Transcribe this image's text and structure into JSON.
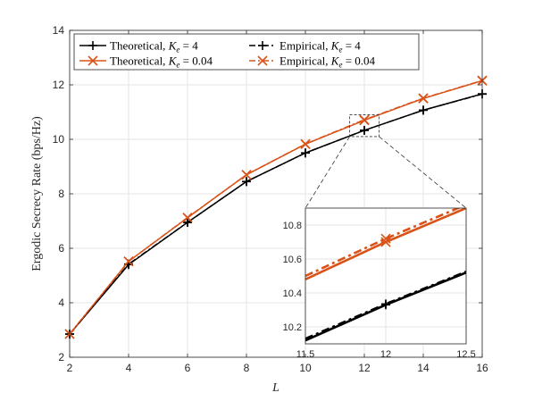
{
  "chart_data": [
    {
      "type": "line",
      "xlabel": "L",
      "ylabel": "Ergodic Secrecy Rate (bps/Hz)",
      "xlim": [
        2,
        16
      ],
      "ylim": [
        2,
        14
      ],
      "xticks": [
        2,
        4,
        6,
        8,
        10,
        12,
        14,
        16
      ],
      "yticks": [
        2,
        4,
        6,
        8,
        10,
        12,
        14
      ],
      "grid": true,
      "legend_position": "top",
      "x": [
        2,
        4,
        6,
        8,
        10,
        12,
        14,
        16
      ],
      "series": [
        {
          "name": "Theoretical, K_e = 4",
          "name_base": "Theoretical, ",
          "name_sub": "e",
          "name_value": " = 4",
          "color": "#000000",
          "marker": "plus",
          "linestyle": "solid",
          "values": [
            2.85,
            5.4,
            6.95,
            8.45,
            9.5,
            10.33,
            11.07,
            11.67
          ]
        },
        {
          "name": "Theoretical, K_e = 0.04",
          "name_base": "Theoretical, ",
          "name_sub": "e",
          "name_value": " = 0.04",
          "color": "#D95319",
          "marker": "x",
          "linestyle": "solid",
          "values": [
            2.85,
            5.52,
            7.12,
            8.7,
            9.82,
            10.7,
            11.5,
            12.15
          ]
        },
        {
          "name": "Empirical, K_e = 4",
          "name_base": "Empirical, ",
          "name_sub": "e",
          "name_value": " = 4",
          "color": "#000000",
          "marker": "plus",
          "linestyle": "dashdot",
          "values": [
            2.85,
            5.42,
            6.95,
            8.45,
            9.5,
            10.33,
            11.07,
            11.66
          ]
        },
        {
          "name": "Empirical, K_e = 0.04",
          "name_base": "Empirical, ",
          "name_sub": "e",
          "name_value": " = 0.04",
          "color": "#D95319",
          "marker": "x",
          "linestyle": "dashdot",
          "values": [
            2.86,
            5.52,
            7.13,
            8.7,
            9.83,
            10.72,
            11.51,
            12.16
          ]
        }
      ]
    },
    {
      "type": "line",
      "role": "inset zoom",
      "xlim": [
        11.5,
        12.5
      ],
      "ylim": [
        10.1,
        10.9
      ],
      "xticks": [
        11.5,
        12,
        12.5
      ],
      "yticks": [
        10.2,
        10.4,
        10.6,
        10.8
      ],
      "grid": true,
      "series": [
        {
          "name": "Theoretical, K_e = 4",
          "color": "#000000",
          "linestyle": "solid",
          "x": [
            11.5,
            12,
            12.5
          ],
          "values": [
            10.12,
            10.33,
            10.52
          ],
          "markers_at": [
            12
          ]
        },
        {
          "name": "Empirical, K_e = 4",
          "color": "#000000",
          "linestyle": "dashdot",
          "x": [
            11.5,
            12,
            12.5
          ],
          "values": [
            10.13,
            10.335,
            10.525
          ],
          "markers_at": [
            12
          ]
        },
        {
          "name": "Theoretical, K_e = 0.04",
          "color": "#D95319",
          "linestyle": "solid",
          "x": [
            11.5,
            12,
            12.5
          ],
          "values": [
            10.48,
            10.7,
            10.9
          ],
          "markers_at": [
            12
          ]
        },
        {
          "name": "Empirical, K_e = 0.04",
          "color": "#D95319",
          "linestyle": "dashdot",
          "x": [
            11.5,
            12,
            12.5
          ],
          "values": [
            10.5,
            10.72,
            10.92
          ],
          "markers_at": [
            12
          ]
        }
      ]
    }
  ],
  "colors": {
    "black": "#000000",
    "orange": "#D95319",
    "grid": "#e6e6e6",
    "axis": "#262626"
  }
}
